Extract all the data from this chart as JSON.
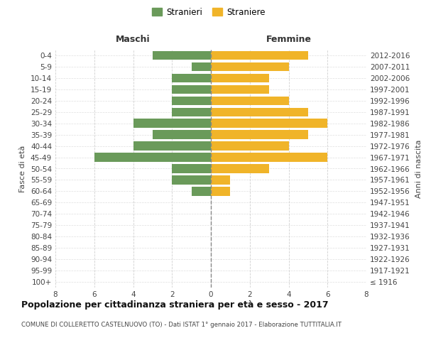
{
  "age_groups": [
    "100+",
    "95-99",
    "90-94",
    "85-89",
    "80-84",
    "75-79",
    "70-74",
    "65-69",
    "60-64",
    "55-59",
    "50-54",
    "45-49",
    "40-44",
    "35-39",
    "30-34",
    "25-29",
    "20-24",
    "15-19",
    "10-14",
    "5-9",
    "0-4"
  ],
  "birth_years": [
    "≤ 1916",
    "1917-1921",
    "1922-1926",
    "1927-1931",
    "1932-1936",
    "1937-1941",
    "1942-1946",
    "1947-1951",
    "1952-1956",
    "1957-1961",
    "1962-1966",
    "1967-1971",
    "1972-1976",
    "1977-1981",
    "1982-1986",
    "1987-1991",
    "1992-1996",
    "1997-2001",
    "2002-2006",
    "2007-2011",
    "2012-2016"
  ],
  "maschi": [
    0,
    0,
    0,
    0,
    0,
    0,
    0,
    0,
    1,
    2,
    2,
    6,
    4,
    3,
    4,
    2,
    2,
    2,
    2,
    1,
    3
  ],
  "femmine": [
    0,
    0,
    0,
    0,
    0,
    0,
    0,
    0,
    1,
    1,
    3,
    6,
    4,
    5,
    6,
    5,
    4,
    3,
    3,
    4,
    5
  ],
  "color_maschi": "#6a9a5a",
  "color_femmine": "#f0b429",
  "title": "Popolazione per cittadinanza straniera per età e sesso - 2017",
  "subtitle": "COMUNE DI COLLERETTO CASTELNUOVO (TO) - Dati ISTAT 1° gennaio 2017 - Elaborazione TUTTITALIA.IT",
  "ylabel_left": "Fasce di età",
  "ylabel_right": "Anni di nascita",
  "label_maschi": "Maschi",
  "label_femmine": "Femmine",
  "legend_maschi": "Stranieri",
  "legend_femmine": "Straniere",
  "xlim": 8,
  "background_color": "#ffffff",
  "grid_color": "#d0d0d0"
}
